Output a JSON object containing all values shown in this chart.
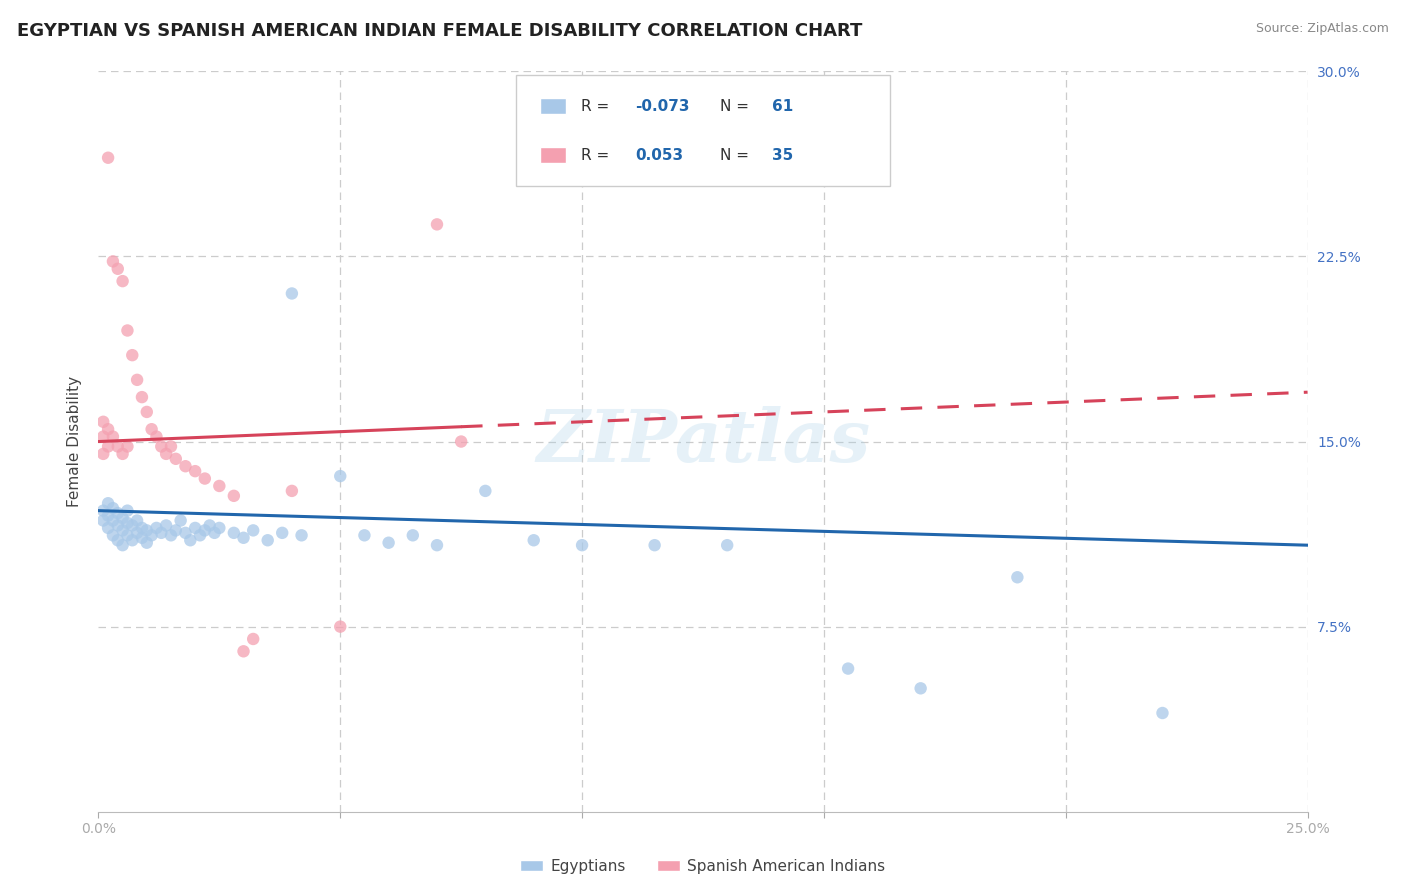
{
  "title": "EGYPTIAN VS SPANISH AMERICAN INDIAN FEMALE DISABILITY CORRELATION CHART",
  "source": "Source: ZipAtlas.com",
  "ylabel": "Female Disability",
  "xlim": [
    0.0,
    0.25
  ],
  "ylim": [
    0.0,
    0.3
  ],
  "blue_color": "#a8c8e8",
  "pink_color": "#f4a0b0",
  "blue_line_color": "#2166ac",
  "pink_line_color": "#d6435a",
  "watermark": "ZIPatlas",
  "egyptians_x": [
    0.001,
    0.001,
    0.002,
    0.002,
    0.002,
    0.003,
    0.003,
    0.003,
    0.004,
    0.004,
    0.004,
    0.005,
    0.005,
    0.005,
    0.006,
    0.006,
    0.006,
    0.007,
    0.007,
    0.008,
    0.008,
    0.009,
    0.009,
    0.01,
    0.01,
    0.011,
    0.012,
    0.013,
    0.014,
    0.015,
    0.016,
    0.017,
    0.018,
    0.019,
    0.02,
    0.021,
    0.022,
    0.023,
    0.024,
    0.025,
    0.028,
    0.03,
    0.032,
    0.035,
    0.038,
    0.04,
    0.042,
    0.05,
    0.055,
    0.06,
    0.065,
    0.07,
    0.08,
    0.09,
    0.1,
    0.115,
    0.13,
    0.155,
    0.17,
    0.19,
    0.22
  ],
  "egyptians_y": [
    0.118,
    0.122,
    0.115,
    0.12,
    0.125,
    0.112,
    0.118,
    0.123,
    0.11,
    0.116,
    0.121,
    0.108,
    0.114,
    0.119,
    0.112,
    0.117,
    0.122,
    0.11,
    0.116,
    0.113,
    0.118,
    0.111,
    0.115,
    0.109,
    0.114,
    0.112,
    0.115,
    0.113,
    0.116,
    0.112,
    0.114,
    0.118,
    0.113,
    0.11,
    0.115,
    0.112,
    0.114,
    0.116,
    0.113,
    0.115,
    0.113,
    0.111,
    0.114,
    0.11,
    0.113,
    0.21,
    0.112,
    0.136,
    0.112,
    0.109,
    0.112,
    0.108,
    0.13,
    0.11,
    0.108,
    0.108,
    0.108,
    0.058,
    0.05,
    0.095,
    0.04
  ],
  "spanish_x": [
    0.001,
    0.001,
    0.001,
    0.002,
    0.002,
    0.002,
    0.003,
    0.003,
    0.004,
    0.004,
    0.005,
    0.005,
    0.006,
    0.006,
    0.007,
    0.008,
    0.009,
    0.01,
    0.011,
    0.012,
    0.013,
    0.014,
    0.015,
    0.016,
    0.018,
    0.02,
    0.022,
    0.025,
    0.028,
    0.03,
    0.032,
    0.04,
    0.05,
    0.07,
    0.075
  ],
  "spanish_y": [
    0.145,
    0.152,
    0.158,
    0.265,
    0.148,
    0.155,
    0.152,
    0.223,
    0.148,
    0.22,
    0.145,
    0.215,
    0.148,
    0.195,
    0.185,
    0.175,
    0.168,
    0.162,
    0.155,
    0.152,
    0.148,
    0.145,
    0.148,
    0.143,
    0.14,
    0.138,
    0.135,
    0.132,
    0.128,
    0.065,
    0.07,
    0.13,
    0.075,
    0.238,
    0.15
  ]
}
